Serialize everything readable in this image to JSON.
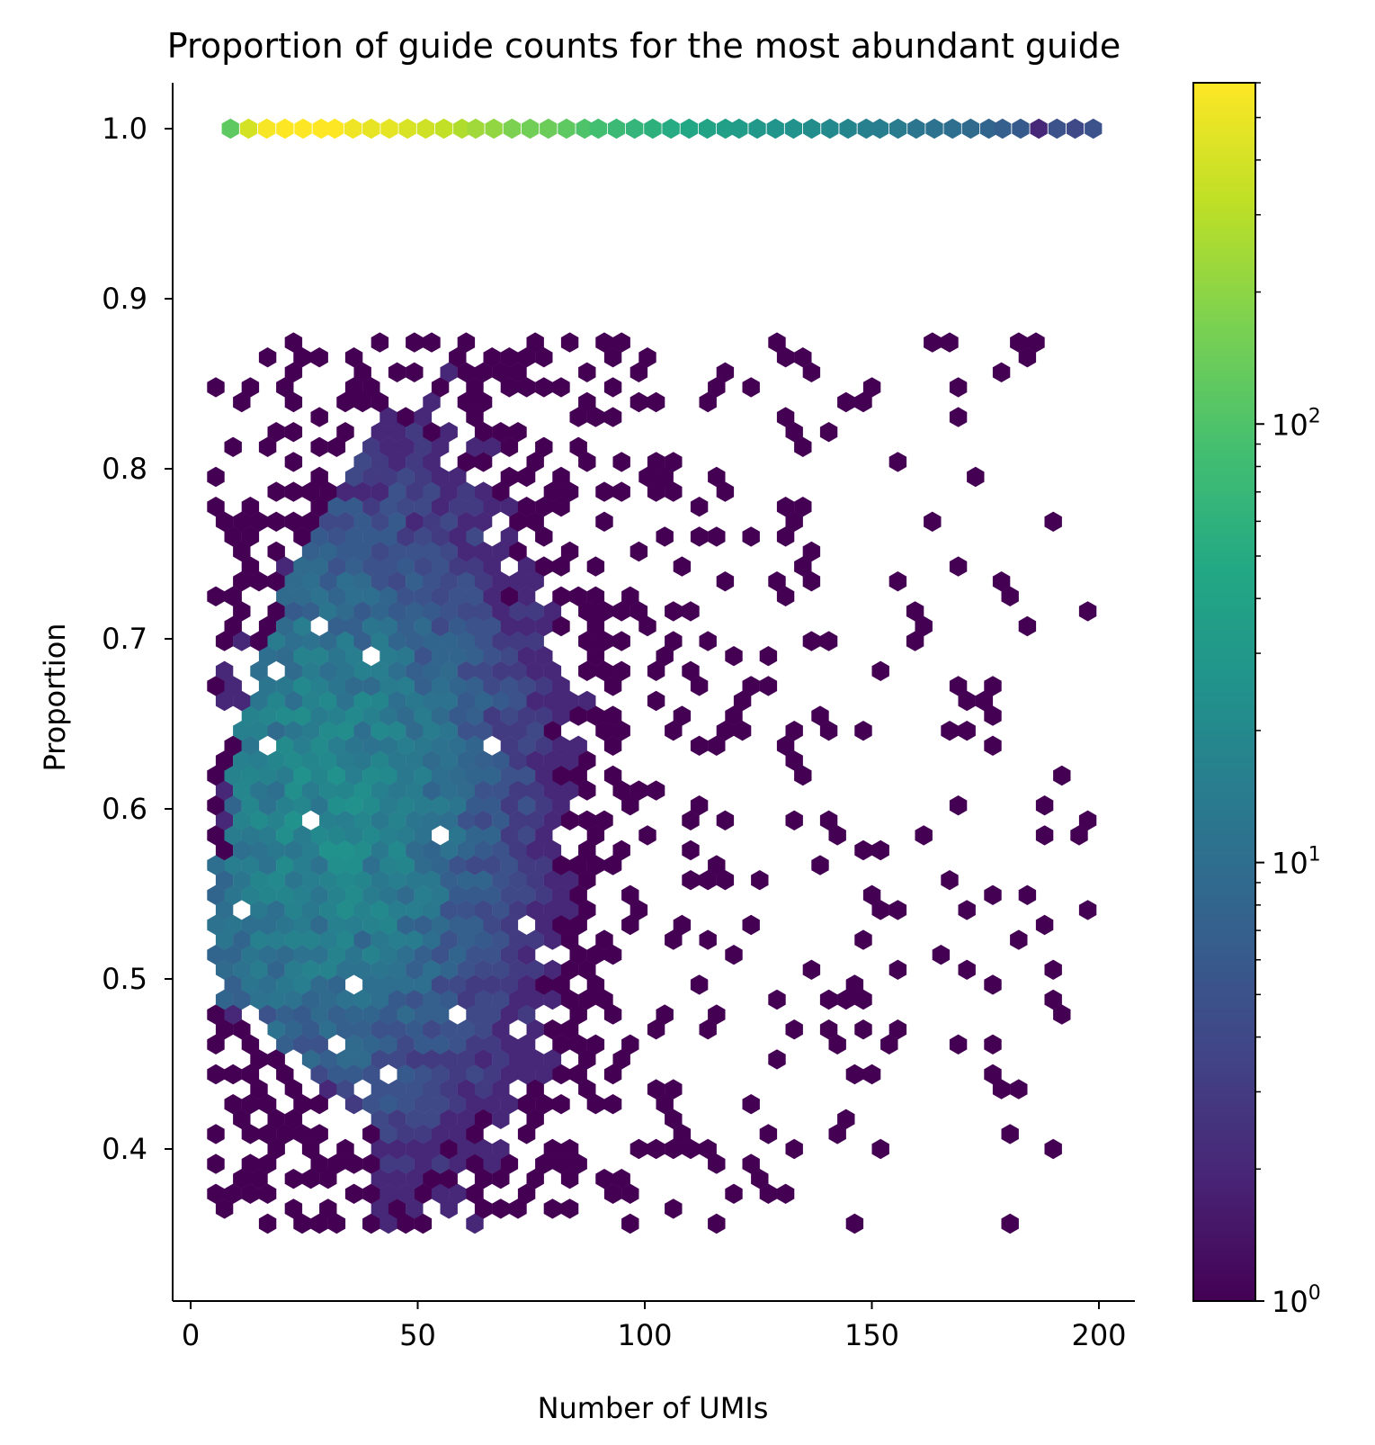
{
  "chart_data": {
    "type": "heatmap",
    "subtype": "hexbin",
    "title": "Proportion of guide counts for the most abundant guide",
    "xlabel": "Number of UMIs",
    "ylabel": "Proportion",
    "xlim": [
      -4,
      208
    ],
    "ylim": [
      0.32,
      1.033
    ],
    "xticks": [
      0,
      50,
      100,
      150,
      200
    ],
    "yticks": [
      0.4,
      0.5,
      0.6,
      0.7,
      0.8,
      0.9,
      1.0
    ],
    "xtick_labels": [
      "0",
      "50",
      "100",
      "150",
      "200"
    ],
    "ytick_labels": [
      "0.4",
      "0.5",
      "0.6",
      "0.7",
      "0.8",
      "0.9",
      "1.0"
    ],
    "colorbar": {
      "scale": "log",
      "colormap": "viridis",
      "range": [
        1,
        600
      ],
      "tick_values": [
        1,
        10,
        100
      ],
      "tick_base": "10",
      "tick_exponents": [
        "0",
        "1",
        "2"
      ]
    },
    "grid": false,
    "top_row": {
      "y": 1.0,
      "x": [
        5,
        9,
        13,
        17,
        21,
        25,
        28,
        32,
        36,
        40,
        44,
        48,
        52,
        56,
        59,
        63,
        67,
        71,
        75,
        79,
        83,
        86,
        90,
        94,
        98,
        102,
        106,
        110,
        114,
        117,
        121,
        125,
        129,
        133,
        137,
        141,
        145,
        148,
        152,
        156,
        160,
        164,
        168,
        172,
        175,
        179,
        183,
        187,
        191,
        195
      ],
      "counts": [
        120,
        400,
        560,
        600,
        620,
        620,
        610,
        520,
        480,
        470,
        420,
        380,
        330,
        280,
        240,
        210,
        170,
        150,
        140,
        120,
        100,
        85,
        75,
        66,
        58,
        50,
        45,
        40,
        37,
        33,
        30,
        27,
        25,
        22,
        20,
        18,
        16,
        15,
        14,
        12,
        11,
        10,
        9,
        8,
        7,
        6,
        2,
        5,
        4,
        5
      ]
    },
    "cloud_density_regions": [
      {
        "region": "x 8-40, y 0.50-0.62",
        "approx_count": 12
      },
      {
        "region": "x 8-45, y 0.62-0.75",
        "approx_count": 7
      },
      {
        "region": "x 40-80, y 0.55-0.80",
        "approx_count": 4
      },
      {
        "region": "x 80-130, y 0.40-0.95",
        "approx_count": 1
      },
      {
        "region": "x 130-200, y 0.36-0.98",
        "approx_count": 1
      }
    ]
  }
}
